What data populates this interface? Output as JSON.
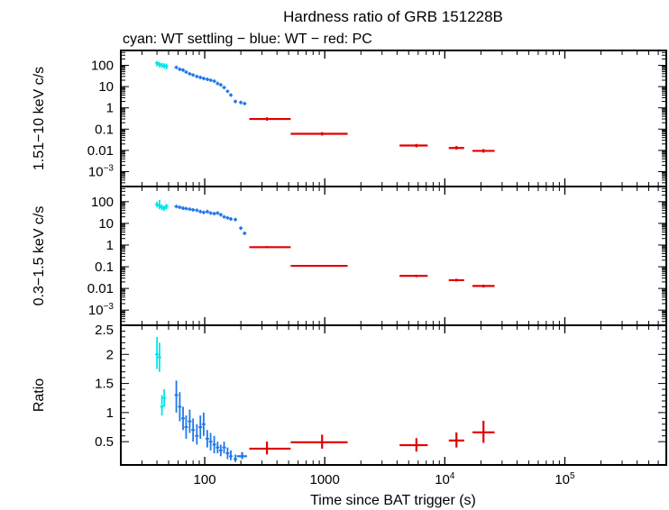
{
  "chart_data": {
    "type": "scatter",
    "title": "Hardness ratio of GRB 151228B",
    "subtitle": "cyan: WT settling − blue: WT − red: PC",
    "xlabel": "Time since BAT trigger (s)",
    "x_scale": "log",
    "xlim": [
      20,
      700000
    ],
    "x_tick_labels": [
      {
        "value": 100,
        "label": "100"
      },
      {
        "value": 1000,
        "label": "1000"
      },
      {
        "value": 10000,
        "label": "10",
        "sup": "4"
      },
      {
        "value": 100000,
        "label": "10",
        "sup": "5"
      }
    ],
    "colors": {
      "wt_settling": "#00e5e5",
      "wt": "#1f77e8",
      "pc": "#e00000",
      "frame": "#000000"
    },
    "panels": [
      {
        "id": "hard",
        "ylabel": "1.51−10 keV c/s",
        "y_scale": "log",
        "ylim": [
          0.0002,
          500
        ],
        "y_tick_labels": [
          {
            "value": 100,
            "label": "100"
          },
          {
            "value": 10,
            "label": "10"
          },
          {
            "value": 1,
            "label": "1"
          },
          {
            "value": 0.1,
            "label": "0.1"
          },
          {
            "value": 0.01,
            "label": "0.01"
          },
          {
            "value": 0.001,
            "label": "10",
            "sup": "−3"
          }
        ],
        "series": [
          {
            "name": "WT settling",
            "color_key": "wt_settling",
            "points": [
              {
                "x": 40,
                "y": 130,
                "ylo": 90,
                "yhi": 160
              },
              {
                "x": 42,
                "y": 110,
                "ylo": 80,
                "yhi": 140
              },
              {
                "x": 44,
                "y": 100,
                "ylo": 75,
                "yhi": 130
              },
              {
                "x": 46,
                "y": 95,
                "ylo": 70,
                "yhi": 125
              },
              {
                "x": 48,
                "y": 90,
                "ylo": 65,
                "yhi": 120
              }
            ]
          },
          {
            "name": "WT",
            "color_key": "wt",
            "points": [
              {
                "x": 58,
                "y": 80
              },
              {
                "x": 62,
                "y": 65
              },
              {
                "x": 66,
                "y": 60
              },
              {
                "x": 70,
                "y": 48
              },
              {
                "x": 75,
                "y": 40
              },
              {
                "x": 80,
                "y": 35
              },
              {
                "x": 86,
                "y": 30
              },
              {
                "x": 92,
                "y": 27
              },
              {
                "x": 98,
                "y": 24
              },
              {
                "x": 105,
                "y": 22
              },
              {
                "x": 112,
                "y": 20
              },
              {
                "x": 120,
                "y": 18
              },
              {
                "x": 128,
                "y": 14
              },
              {
                "x": 136,
                "y": 12
              },
              {
                "x": 145,
                "y": 9
              },
              {
                "x": 155,
                "y": 6
              },
              {
                "x": 165,
                "y": 4
              },
              {
                "x": 180,
                "y": 2
              },
              {
                "x": 200,
                "y": 1.8
              },
              {
                "x": 215,
                "y": 1.6
              }
            ]
          },
          {
            "name": "PC",
            "color_key": "pc",
            "points": [
              {
                "x": 330,
                "xlo": 235,
                "xhi": 520,
                "y": 0.3,
                "ylo": 0.25,
                "yhi": 0.36
              },
              {
                "x": 950,
                "xlo": 520,
                "xhi": 1550,
                "y": 0.06,
                "ylo": 0.05,
                "yhi": 0.072
              },
              {
                "x": 5800,
                "xlo": 4200,
                "xhi": 7200,
                "y": 0.017,
                "ylo": 0.014,
                "yhi": 0.02
              },
              {
                "x": 12500,
                "xlo": 10800,
                "xhi": 14500,
                "y": 0.013,
                "ylo": 0.011,
                "yhi": 0.016
              },
              {
                "x": 21000,
                "xlo": 17000,
                "xhi": 26000,
                "y": 0.0095,
                "ylo": 0.0078,
                "yhi": 0.0115
              }
            ]
          }
        ]
      },
      {
        "id": "soft",
        "ylabel": "0.3−1.5 keV c/s",
        "y_scale": "log",
        "ylim": [
          0.0002,
          500
        ],
        "y_tick_labels": [
          {
            "value": 100,
            "label": "100"
          },
          {
            "value": 10,
            "label": "10"
          },
          {
            "value": 1,
            "label": "1"
          },
          {
            "value": 0.1,
            "label": "0.1"
          },
          {
            "value": 0.01,
            "label": "0.01"
          },
          {
            "value": 0.001,
            "label": "10",
            "sup": "−3"
          }
        ],
        "series": [
          {
            "name": "WT settling",
            "color_key": "wt_settling",
            "points": [
              {
                "x": 40,
                "y": 75,
                "ylo": 55,
                "yhi": 100
              },
              {
                "x": 42,
                "y": 65,
                "ylo": 45,
                "yhi": 120
              },
              {
                "x": 44,
                "y": 55,
                "ylo": 40,
                "yhi": 75
              },
              {
                "x": 46,
                "y": 50,
                "ylo": 38,
                "yhi": 65
              },
              {
                "x": 48,
                "y": 60,
                "ylo": 45,
                "yhi": 80
              }
            ]
          },
          {
            "name": "WT",
            "color_key": "wt",
            "points": [
              {
                "x": 58,
                "y": 60
              },
              {
                "x": 62,
                "y": 55
              },
              {
                "x": 66,
                "y": 50
              },
              {
                "x": 70,
                "y": 48
              },
              {
                "x": 75,
                "y": 45
              },
              {
                "x": 80,
                "y": 42
              },
              {
                "x": 86,
                "y": 40
              },
              {
                "x": 92,
                "y": 35
              },
              {
                "x": 98,
                "y": 32
              },
              {
                "x": 105,
                "y": 35
              },
              {
                "x": 112,
                "y": 30
              },
              {
                "x": 120,
                "y": 28
              },
              {
                "x": 128,
                "y": 30
              },
              {
                "x": 136,
                "y": 25
              },
              {
                "x": 145,
                "y": 20
              },
              {
                "x": 155,
                "y": 18
              },
              {
                "x": 165,
                "y": 16
              },
              {
                "x": 180,
                "y": 15
              },
              {
                "x": 200,
                "y": 6
              },
              {
                "x": 215,
                "y": 3.5
              }
            ]
          },
          {
            "name": "PC",
            "color_key": "pc",
            "points": [
              {
                "x": 330,
                "xlo": 235,
                "xhi": 520,
                "y": 0.8,
                "ylo": 0.72,
                "yhi": 0.9
              },
              {
                "x": 950,
                "xlo": 520,
                "xhi": 1550,
                "y": 0.11,
                "ylo": 0.1,
                "yhi": 0.12
              },
              {
                "x": 5800,
                "xlo": 4200,
                "xhi": 7200,
                "y": 0.038,
                "ylo": 0.033,
                "yhi": 0.043
              },
              {
                "x": 12500,
                "xlo": 10800,
                "xhi": 14500,
                "y": 0.024,
                "ylo": 0.021,
                "yhi": 0.028
              },
              {
                "x": 21000,
                "xlo": 17000,
                "xhi": 26000,
                "y": 0.013,
                "ylo": 0.011,
                "yhi": 0.015
              }
            ]
          }
        ]
      },
      {
        "id": "ratio",
        "ylabel": "Ratio",
        "y_scale": "linear",
        "ylim": [
          0.1,
          2.5
        ],
        "y_tick_labels": [
          {
            "value": 2.5,
            "label": "2.5"
          },
          {
            "value": 2,
            "label": "2"
          },
          {
            "value": 1.5,
            "label": "1.5"
          },
          {
            "value": 1,
            "label": "1"
          },
          {
            "value": 0.5,
            "label": "0.5"
          }
        ],
        "series": [
          {
            "name": "WT settling",
            "color_key": "wt_settling",
            "points": [
              {
                "x": 40,
                "y": 2.0,
                "ylo": 1.75,
                "yhi": 2.3
              },
              {
                "x": 42,
                "y": 1.95,
                "ylo": 1.7,
                "yhi": 2.2
              },
              {
                "x": 44,
                "y": 1.1,
                "ylo": 0.95,
                "yhi": 1.3
              },
              {
                "x": 46,
                "y": 1.25,
                "ylo": 1.1,
                "yhi": 1.4
              }
            ]
          },
          {
            "name": "WT",
            "color_key": "wt",
            "points": [
              {
                "x": 58,
                "y": 1.3,
                "ylo": 1.0,
                "yhi": 1.55
              },
              {
                "x": 62,
                "y": 1.1,
                "ylo": 0.85,
                "yhi": 1.35
              },
              {
                "x": 66,
                "y": 0.9,
                "ylo": 0.7,
                "yhi": 1.1
              },
              {
                "x": 70,
                "y": 0.75,
                "ylo": 0.55,
                "yhi": 0.95
              },
              {
                "x": 75,
                "y": 0.85,
                "ylo": 0.65,
                "yhi": 1.05
              },
              {
                "x": 80,
                "y": 0.7,
                "ylo": 0.5,
                "yhi": 0.9
              },
              {
                "x": 86,
                "y": 0.6,
                "ylo": 0.45,
                "yhi": 0.8
              },
              {
                "x": 92,
                "y": 0.75,
                "ylo": 0.55,
                "yhi": 0.95
              },
              {
                "x": 98,
                "y": 0.8,
                "ylo": 0.6,
                "yhi": 1.0
              },
              {
                "x": 105,
                "y": 0.55,
                "ylo": 0.4,
                "yhi": 0.7
              },
              {
                "x": 112,
                "y": 0.5,
                "ylo": 0.35,
                "yhi": 0.65
              },
              {
                "x": 120,
                "y": 0.45,
                "ylo": 0.3,
                "yhi": 0.6
              },
              {
                "x": 128,
                "y": 0.4,
                "ylo": 0.3,
                "yhi": 0.5
              },
              {
                "x": 136,
                "y": 0.35,
                "ylo": 0.25,
                "yhi": 0.45
              },
              {
                "x": 145,
                "y": 0.4,
                "ylo": 0.3,
                "yhi": 0.5
              },
              {
                "x": 155,
                "y": 0.3,
                "ylo": 0.2,
                "yhi": 0.4
              },
              {
                "x": 165,
                "y": 0.25,
                "ylo": 0.18,
                "yhi": 0.35
              },
              {
                "x": 180,
                "y": 0.2,
                "ylo": 0.15,
                "yhi": 0.28
              },
              {
                "x": 205,
                "xlo": 185,
                "xhi": 225,
                "y": 0.25,
                "ylo": 0.2,
                "yhi": 0.32
              }
            ]
          },
          {
            "name": "PC",
            "color_key": "pc",
            "points": [
              {
                "x": 330,
                "xlo": 235,
                "xhi": 520,
                "y": 0.38,
                "ylo": 0.28,
                "yhi": 0.5
              },
              {
                "x": 950,
                "xlo": 520,
                "xhi": 1550,
                "y": 0.49,
                "ylo": 0.38,
                "yhi": 0.62
              },
              {
                "x": 5800,
                "xlo": 4200,
                "xhi": 7200,
                "y": 0.44,
                "ylo": 0.33,
                "yhi": 0.56
              },
              {
                "x": 12500,
                "xlo": 10800,
                "xhi": 14500,
                "y": 0.52,
                "ylo": 0.4,
                "yhi": 0.66
              },
              {
                "x": 21000,
                "xlo": 17000,
                "xhi": 26000,
                "y": 0.66,
                "ylo": 0.48,
                "yhi": 0.86
              }
            ]
          }
        ]
      }
    ]
  }
}
